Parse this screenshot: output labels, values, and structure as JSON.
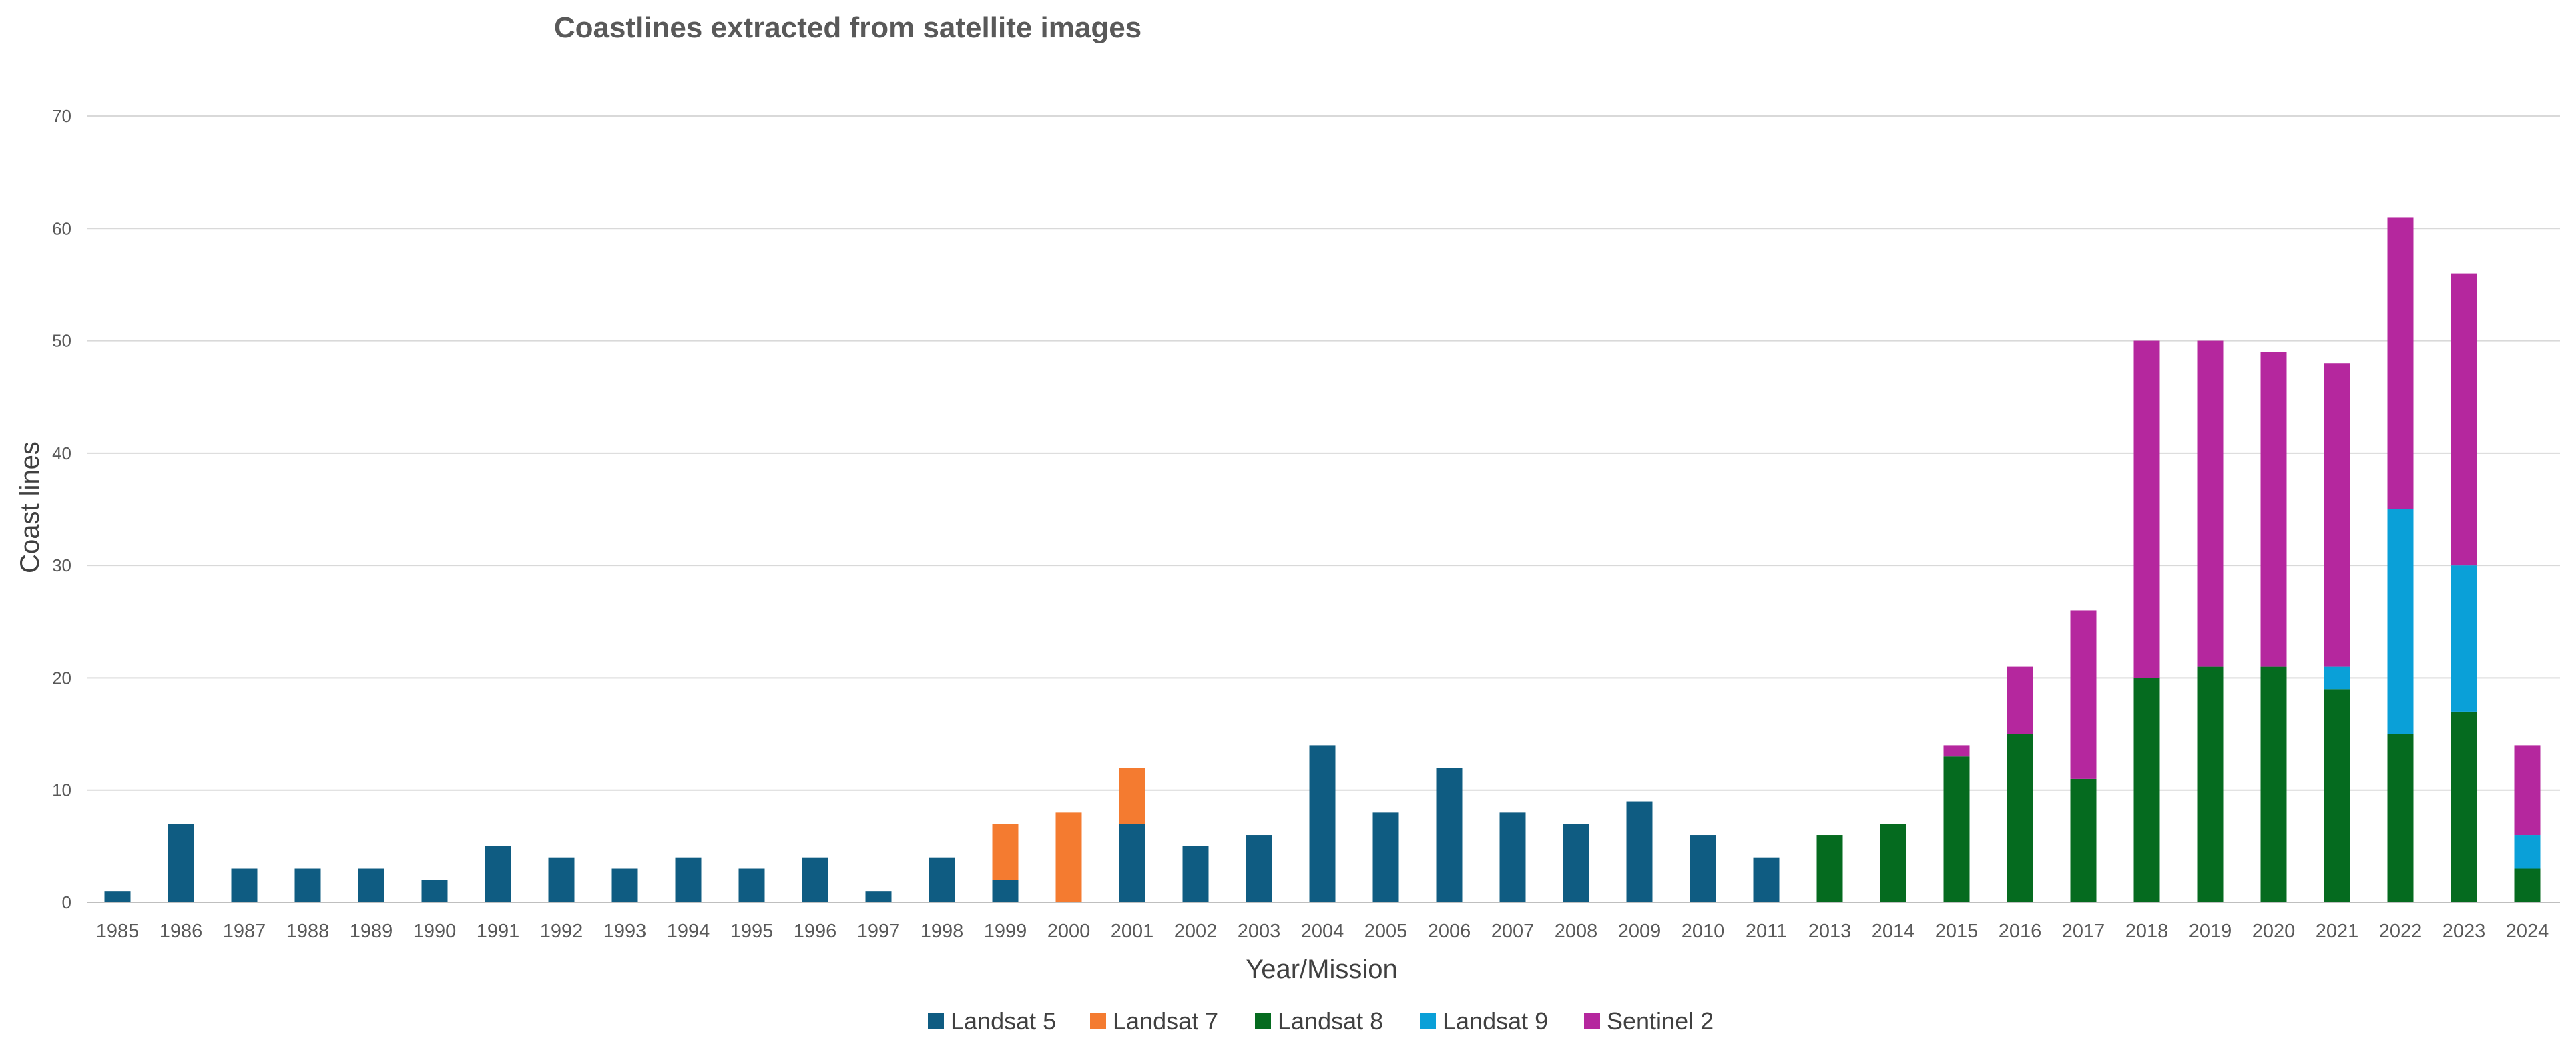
{
  "chart_data": {
    "type": "bar",
    "stacked": true,
    "title": "Coastlines extracted from satellite images",
    "xlabel": "Year/Mission",
    "ylabel": "Coast lines",
    "ylim": [
      0,
      70
    ],
    "yticks": [
      0,
      10,
      20,
      30,
      40,
      50,
      60,
      70
    ],
    "grid": true,
    "legend_position": "bottom",
    "categories": [
      "1985",
      "1986",
      "1987",
      "1988",
      "1989",
      "1990",
      "1991",
      "1992",
      "1993",
      "1994",
      "1995",
      "1996",
      "1997",
      "1998",
      "1999",
      "2000",
      "2001",
      "2002",
      "2003",
      "2004",
      "2005",
      "2006",
      "2007",
      "2008",
      "2009",
      "2010",
      "2011",
      "2013",
      "2014",
      "2015",
      "2016",
      "2017",
      "2018",
      "2019",
      "2020",
      "2021",
      "2022",
      "2023",
      "2024"
    ],
    "series": [
      {
        "name": "Landsat 5",
        "color": "#0F5C82",
        "values": [
          1,
          7,
          3,
          3,
          3,
          2,
          5,
          4,
          3,
          4,
          3,
          4,
          1,
          4,
          2,
          0,
          7,
          5,
          6,
          14,
          8,
          12,
          8,
          7,
          9,
          6,
          4,
          0,
          0,
          0,
          0,
          0,
          0,
          0,
          0,
          0,
          0,
          0,
          0
        ]
      },
      {
        "name": "Landsat 7",
        "color": "#F47B30",
        "values": [
          0,
          0,
          0,
          0,
          0,
          0,
          0,
          0,
          0,
          0,
          0,
          0,
          0,
          0,
          5,
          8,
          5,
          0,
          0,
          0,
          0,
          0,
          0,
          0,
          0,
          0,
          0,
          0,
          0,
          0,
          0,
          0,
          0,
          0,
          0,
          0,
          0,
          0,
          0
        ]
      },
      {
        "name": "Landsat 8",
        "color": "#056B1F",
        "values": [
          0,
          0,
          0,
          0,
          0,
          0,
          0,
          0,
          0,
          0,
          0,
          0,
          0,
          0,
          0,
          0,
          0,
          0,
          0,
          0,
          0,
          0,
          0,
          0,
          0,
          0,
          0,
          6,
          7,
          13,
          15,
          11,
          20,
          21,
          21,
          19,
          15,
          17,
          3
        ]
      },
      {
        "name": "Landsat 9",
        "color": "#0AA0D8",
        "values": [
          0,
          0,
          0,
          0,
          0,
          0,
          0,
          0,
          0,
          0,
          0,
          0,
          0,
          0,
          0,
          0,
          0,
          0,
          0,
          0,
          0,
          0,
          0,
          0,
          0,
          0,
          0,
          0,
          0,
          0,
          0,
          0,
          0,
          0,
          0,
          2,
          20,
          13,
          3
        ]
      },
      {
        "name": "Sentinel 2",
        "color": "#B5279E",
        "values": [
          0,
          0,
          0,
          0,
          0,
          0,
          0,
          0,
          0,
          0,
          0,
          0,
          0,
          0,
          0,
          0,
          0,
          0,
          0,
          0,
          0,
          0,
          0,
          0,
          0,
          0,
          0,
          0,
          0,
          1,
          6,
          15,
          30,
          29,
          28,
          27,
          26,
          26,
          8
        ]
      }
    ]
  }
}
